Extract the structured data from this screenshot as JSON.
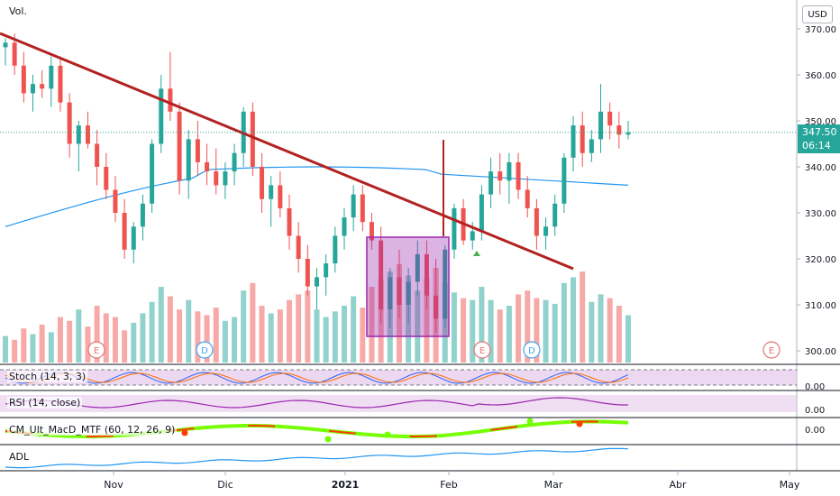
{
  "toolbar": {
    "currency": "USD"
  },
  "last_price": {
    "value": "347.50",
    "countdown": "06:14"
  },
  "panes": {
    "volume": "Vol.",
    "stoch": "Stoch (14, 3, 3)",
    "rsi": "RSI (14, close)",
    "macd": "CM_Ult_MacD_MTF (60, 12, 26, 9)",
    "adl": "ADL"
  },
  "colors": {
    "up": "#26a69a",
    "down": "#ef5350",
    "trendline": "#b22222",
    "ma": "#2196f3",
    "box": "#9c27b0"
  },
  "chart_data": {
    "type": "candlestick",
    "y_axis": {
      "ticks": [
        "370.00",
        "360.00",
        "350.00",
        "340.00",
        "330.00",
        "320.00",
        "310.00",
        "300.00"
      ],
      "min": 296,
      "max": 373
    },
    "x_axis": {
      "ticks": [
        "Nov",
        "Dic",
        "2021",
        "Feb",
        "Mar",
        "Abr",
        "May"
      ]
    },
    "indicator_axis": {
      "stoch": "0.00",
      "rsi": "0.00",
      "macd": "0.00"
    },
    "events": [
      {
        "label": "E",
        "kind": "earnings",
        "date": "2020-10-30"
      },
      {
        "label": "D",
        "kind": "dividend",
        "date": "2020-11-27"
      },
      {
        "label": "E",
        "kind": "earnings",
        "date": "2021-02-08"
      },
      {
        "label": "D",
        "kind": "dividend",
        "date": "2021-02-24"
      },
      {
        "label": "E",
        "kind": "earnings",
        "date": "2021-04-29"
      }
    ],
    "candles": [
      [
        366,
        368,
        362,
        367
      ],
      [
        367,
        369,
        360,
        362
      ],
      [
        362,
        365,
        354,
        356
      ],
      [
        356,
        360,
        352,
        358
      ],
      [
        358,
        361,
        355,
        357
      ],
      [
        357,
        364,
        353,
        362
      ],
      [
        362,
        364,
        352,
        354
      ],
      [
        354,
        356,
        342,
        345
      ],
      [
        345,
        350,
        339,
        349
      ],
      [
        349,
        352,
        344,
        345
      ],
      [
        345,
        348,
        336,
        340
      ],
      [
        340,
        343,
        333,
        335
      ],
      [
        335,
        338,
        328,
        330
      ],
      [
        330,
        333,
        320,
        322
      ],
      [
        322,
        328,
        319,
        327
      ],
      [
        327,
        334,
        324,
        332
      ],
      [
        332,
        346,
        330,
        345
      ],
      [
        345,
        360,
        343,
        357
      ],
      [
        357,
        365,
        350,
        352
      ],
      [
        352,
        354,
        334,
        337
      ],
      [
        337,
        348,
        333,
        346
      ],
      [
        346,
        350,
        338,
        341
      ],
      [
        341,
        345,
        336,
        339
      ],
      [
        339,
        344,
        334,
        336
      ],
      [
        336,
        341,
        333,
        339
      ],
      [
        339,
        345,
        336,
        343
      ],
      [
        343,
        353,
        340,
        352
      ],
      [
        352,
        354,
        338,
        340
      ],
      [
        340,
        343,
        330,
        333
      ],
      [
        333,
        338,
        327,
        336
      ],
      [
        336,
        339,
        329,
        331
      ],
      [
        331,
        334,
        322,
        325
      ],
      [
        325,
        328,
        317,
        320
      ],
      [
        320,
        323,
        312,
        314
      ],
      [
        314,
        318,
        309,
        316
      ],
      [
        316,
        321,
        312,
        319
      ],
      [
        319,
        327,
        317,
        325
      ],
      [
        325,
        331,
        322,
        329
      ],
      [
        329,
        336,
        326,
        334
      ],
      [
        334,
        336,
        326,
        328
      ],
      [
        328,
        330,
        322,
        324
      ],
      [
        324,
        327,
        306,
        309
      ],
      [
        309,
        318,
        305,
        316
      ],
      [
        316,
        322,
        307,
        310
      ],
      [
        310,
        318,
        306,
        315
      ],
      [
        315,
        324,
        312,
        321
      ],
      [
        321,
        324,
        309,
        312
      ],
      [
        312,
        320,
        304,
        307
      ],
      [
        307,
        323,
        305,
        322
      ],
      [
        322,
        332,
        320,
        331
      ],
      [
        331,
        333,
        323,
        324
      ],
      [
        324,
        328,
        322,
        326
      ],
      [
        326,
        336,
        324,
        334
      ],
      [
        334,
        342,
        331,
        339
      ],
      [
        339,
        343,
        334,
        337
      ],
      [
        337,
        343,
        332,
        341
      ],
      [
        341,
        343,
        333,
        335
      ],
      [
        335,
        338,
        329,
        331
      ],
      [
        331,
        333,
        322,
        325
      ],
      [
        325,
        329,
        322,
        327
      ],
      [
        327,
        334,
        325,
        332
      ],
      [
        332,
        343,
        330,
        342
      ],
      [
        342,
        351,
        339,
        349
      ],
      [
        349,
        352,
        340,
        343
      ],
      [
        343,
        348,
        341,
        346
      ],
      [
        346,
        358,
        343,
        352
      ],
      [
        352,
        354,
        346,
        349
      ],
      [
        349,
        352,
        344,
        347
      ],
      [
        347,
        350,
        346,
        347.5
      ]
    ],
    "candle_dates": [
      "2020-10-05",
      "2021-03-19"
    ],
    "volume": [
      14,
      12,
      18,
      15,
      20,
      16,
      24,
      22,
      28,
      19,
      30,
      26,
      24,
      17,
      21,
      26,
      32,
      40,
      35,
      28,
      33,
      27,
      25,
      29,
      22,
      24,
      38,
      42,
      30,
      26,
      28,
      33,
      36,
      38,
      28,
      24,
      27,
      30,
      35,
      29,
      40,
      44,
      48,
      52,
      46,
      38,
      45,
      50,
      42,
      37,
      34,
      33,
      40,
      33,
      28,
      30,
      36,
      38,
      34,
      33,
      31,
      42,
      45,
      48,
      32,
      36,
      34,
      30,
      25
    ],
    "moving_average": {
      "start": 327,
      "mid": 340,
      "end": 336
    },
    "trendline": {
      "from": {
        "date": "2020-10-05",
        "value": 369
      },
      "to": {
        "date": "2021-03-05",
        "value": 318
      }
    }
  }
}
